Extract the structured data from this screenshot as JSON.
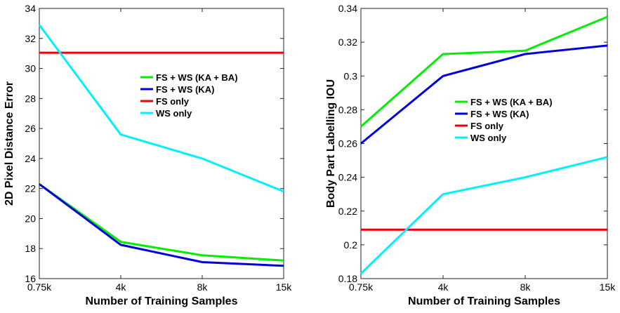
{
  "chart_data": [
    {
      "type": "line",
      "title": "",
      "xlabel": "Number of Training Samples",
      "ylabel": "2D Pixel Distance Error",
      "categories": [
        "0.75k",
        "4k",
        "8k",
        "15k"
      ],
      "ylim": [
        16,
        34
      ],
      "yticks": [
        "16",
        "18",
        "20",
        "22",
        "24",
        "26",
        "28",
        "30",
        "32",
        "34"
      ],
      "grid": false,
      "legend_position": "center-right",
      "series": [
        {
          "name": "FS + WS (KA + BA)",
          "color": "#00ee00",
          "values": [
            22.3,
            18.45,
            17.55,
            17.2
          ]
        },
        {
          "name": "FS + WS (KA)",
          "color": "#0000dd",
          "values": [
            22.3,
            18.25,
            17.1,
            16.85
          ]
        },
        {
          "name": "FS only",
          "color": "#ee0000",
          "values": [
            31.05,
            31.05,
            31.05,
            31.05
          ]
        },
        {
          "name": "WS only",
          "color": "#00f0ff",
          "values": [
            32.9,
            25.6,
            24.0,
            21.8
          ]
        }
      ]
    },
    {
      "type": "line",
      "title": "",
      "xlabel": "Number of Training Samples",
      "ylabel": "Body Part Labelling IOU",
      "categories": [
        "0.75k",
        "4k",
        "8k",
        "15k"
      ],
      "ylim": [
        0.18,
        0.34
      ],
      "yticks": [
        "0.18",
        "0.2",
        "0.22",
        "0.24",
        "0.26",
        "0.28",
        "0.3",
        "0.32",
        "0.34"
      ],
      "grid": false,
      "legend_position": "center-right",
      "series": [
        {
          "name": "FS + WS (KA + BA)",
          "color": "#00ee00",
          "values": [
            0.27,
            0.313,
            0.315,
            0.335
          ]
        },
        {
          "name": "FS + WS (KA)",
          "color": "#0000dd",
          "values": [
            0.26,
            0.3,
            0.313,
            0.318
          ]
        },
        {
          "name": "FS only",
          "color": "#ee0000",
          "values": [
            0.209,
            0.209,
            0.209,
            0.209
          ]
        },
        {
          "name": "WS only",
          "color": "#00f0ff",
          "values": [
            0.183,
            0.23,
            0.24,
            0.252
          ]
        }
      ]
    }
  ]
}
